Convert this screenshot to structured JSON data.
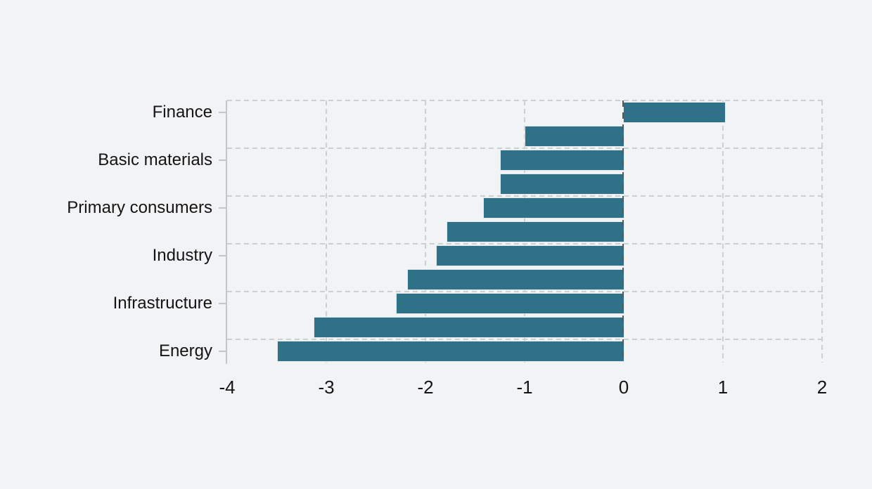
{
  "chart_data": {
    "type": "bar",
    "orientation": "horizontal",
    "title": "",
    "xlabel": "",
    "ylabel": "",
    "xlim": [
      -4,
      2
    ],
    "x_ticks": [
      -4,
      -3,
      -2,
      -1,
      0,
      1,
      2
    ],
    "x_tick_labels": [
      "-4",
      "-3",
      "-2",
      "-1",
      "0",
      "1",
      "2"
    ],
    "grid": "dashed",
    "legend": "none",
    "categories": [
      "Finance",
      "",
      "Basic materials",
      "",
      "Primary consumers",
      "",
      "Industry",
      "",
      "Infrastructure",
      "",
      "Energy"
    ],
    "values": [
      1.02,
      -0.99,
      -1.24,
      -1.24,
      -1.41,
      -1.78,
      -1.89,
      -2.18,
      -2.29,
      -3.12,
      -3.49
    ],
    "labeled_category_names": [
      "Finance",
      "Basic materials",
      "Primary consumers",
      "Industry",
      "Infrastructure",
      "Energy"
    ],
    "colors": {
      "bar": "#2f7187",
      "grid": "#ccd0d3",
      "zero_line": "#55595c",
      "axis": "#c3c7ca",
      "text": "#141414",
      "background": "#f2f3f5"
    }
  }
}
